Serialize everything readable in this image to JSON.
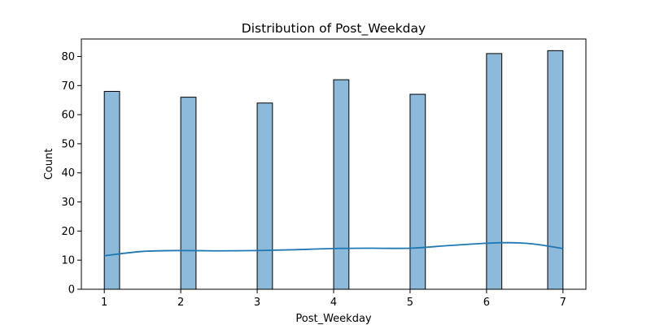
{
  "chart_data": {
    "type": "bar",
    "title": "Distribution of Post_Weekday",
    "xlabel": "Post_Weekday",
    "ylabel": "Count",
    "xlim": [
      0.7,
      7.3
    ],
    "ylim": [
      0,
      86
    ],
    "x_ticks": [
      1,
      2,
      3,
      4,
      5,
      6,
      7
    ],
    "y_ticks": [
      0,
      10,
      20,
      30,
      40,
      50,
      60,
      70,
      80
    ],
    "grid": false,
    "bins": [
      {
        "x0": 1.0,
        "x1": 1.2,
        "value": 68
      },
      {
        "x0": 2.0,
        "x1": 2.2,
        "value": 66
      },
      {
        "x0": 3.0,
        "x1": 3.2,
        "value": 64
      },
      {
        "x0": 4.0,
        "x1": 4.2,
        "value": 72
      },
      {
        "x0": 5.0,
        "x1": 5.2,
        "value": 67
      },
      {
        "x0": 6.0,
        "x1": 6.2,
        "value": 81
      },
      {
        "x0": 6.8,
        "x1": 7.0,
        "value": 82
      }
    ],
    "kde_line": {
      "x": [
        1.0,
        1.5,
        2.0,
        2.5,
        3.0,
        3.5,
        4.0,
        4.5,
        5.0,
        5.5,
        6.0,
        6.3,
        6.6,
        7.0
      ],
      "y": [
        11.5,
        13.0,
        13.3,
        13.2,
        13.3,
        13.6,
        14.0,
        14.1,
        14.1,
        15.0,
        15.8,
        16.0,
        15.6,
        14.0
      ]
    },
    "colors": {
      "bar_fill": "#8db9da",
      "bar_edge": "#000000",
      "kde_line": "#1f77b4"
    }
  }
}
